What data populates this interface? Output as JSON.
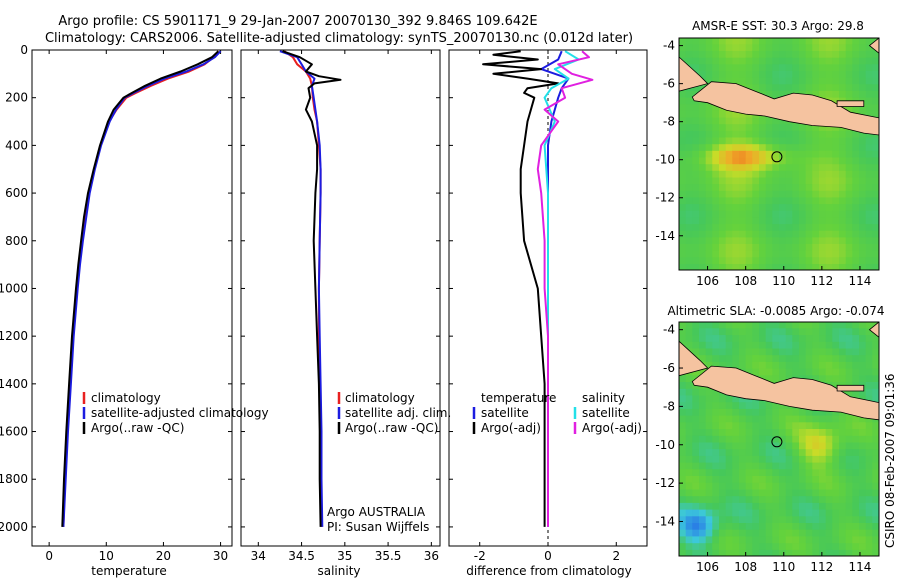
{
  "title_line1": "Argo profile: CS 5901171_9 29-Jan-2007 20070130_392 9.846S 109.642E",
  "title_line2": "Climatology: CARS2006. Satellite-adjusted climatology: synTS_20070130.nc (0.012d later)",
  "side_label": "CSIRO 08-Feb-2007 09:01:36",
  "argo_label_1": "Argo AUSTRALIA",
  "argo_label_2": "PI: Susan Wijffels",
  "colors": {
    "climatology": "#e82020",
    "satellite": "#1c1ce0",
    "argo": "#000000",
    "sal_sat": "#22e0e8",
    "sal_argo": "#e020e0",
    "land": "#f5c3a0"
  },
  "chart_data": [
    {
      "id": "temperature",
      "type": "line",
      "xlabel": "temperature",
      "ylabel": "",
      "xlim": [
        -3,
        32
      ],
      "ylim": [
        2080,
        0
      ],
      "xticks": [
        "0",
        "10",
        "20",
        "30"
      ],
      "yticks": [
        "0",
        "200",
        "400",
        "600",
        "800",
        "1000",
        "1200",
        "1400",
        "1600",
        "1800",
        "2000"
      ],
      "legend": [
        "climatology",
        "satellite-adjusted climatology",
        "Argo(..raw -QC)"
      ],
      "legend_position": "lower-center",
      "series": [
        {
          "name": "climatology",
          "depth": [
            5,
            30,
            60,
            90,
            120,
            150,
            180,
            200,
            250,
            300,
            400,
            500,
            600,
            700,
            800,
            900,
            1000,
            1200,
            1400,
            1600,
            1800,
            2000
          ],
          "values": [
            29.6,
            28.8,
            27.2,
            24.5,
            20.8,
            17.8,
            15.2,
            13.5,
            11.8,
            10.5,
            9.0,
            7.9,
            7.0,
            6.4,
            5.8,
            5.3,
            4.9,
            4.2,
            3.7,
            3.2,
            2.8,
            2.5
          ]
        },
        {
          "name": "satellite-adjusted climatology",
          "depth": [
            5,
            30,
            60,
            90,
            120,
            150,
            180,
            200,
            250,
            300,
            400,
            500,
            600,
            700,
            800,
            900,
            1000,
            1200,
            1400,
            1600,
            1800,
            2000
          ],
          "values": [
            30.0,
            29.0,
            27.0,
            24.0,
            20.2,
            17.3,
            14.8,
            13.2,
            11.7,
            10.6,
            9.1,
            8.0,
            7.1,
            6.5,
            5.9,
            5.4,
            5.0,
            4.3,
            3.8,
            3.3,
            2.9,
            2.5
          ]
        },
        {
          "name": "Argo(..raw -QC)",
          "depth": [
            5,
            30,
            60,
            90,
            120,
            150,
            180,
            200,
            250,
            300,
            400,
            500,
            600,
            700,
            800,
            900,
            1000,
            1200,
            1400,
            1600,
            1800,
            2000
          ],
          "values": [
            29.6,
            28.5,
            26.0,
            23.0,
            19.5,
            16.8,
            14.5,
            13.0,
            11.3,
            10.3,
            8.9,
            7.8,
            6.8,
            6.1,
            5.6,
            5.1,
            4.7,
            4.0,
            3.5,
            3.0,
            2.6,
            2.3
          ]
        }
      ]
    },
    {
      "id": "salinity",
      "type": "line",
      "xlabel": "salinity",
      "xlim": [
        33.8,
        36.1
      ],
      "ylim": [
        2080,
        0
      ],
      "xticks": [
        "34",
        "34.5",
        "35",
        "35.5",
        "36"
      ],
      "legend": [
        "climatology",
        "satellite adj. clim.",
        "Argo(..raw -QC)"
      ],
      "legend_position": "lower-center",
      "series": [
        {
          "name": "climatology",
          "depth": [
            5,
            30,
            60,
            90,
            120,
            150,
            200,
            250,
            300,
            400,
            500,
            600,
            800,
            1000,
            1200,
            1400,
            1600,
            1800,
            2000
          ],
          "values": [
            34.3,
            34.4,
            34.45,
            34.55,
            34.6,
            34.62,
            34.63,
            34.65,
            34.68,
            34.7,
            34.72,
            34.72,
            34.71,
            34.7,
            34.7,
            34.71,
            34.72,
            34.73,
            34.73
          ]
        },
        {
          "name": "satellite adj. clim.",
          "depth": [
            5,
            30,
            60,
            90,
            120,
            150,
            200,
            250,
            300,
            400,
            500,
            600,
            800,
            1000,
            1200,
            1400,
            1600,
            1800,
            2000
          ],
          "values": [
            34.25,
            34.45,
            34.5,
            34.55,
            34.65,
            34.62,
            34.64,
            34.66,
            34.68,
            34.71,
            34.72,
            34.72,
            34.71,
            34.7,
            34.71,
            34.72,
            34.73,
            34.73,
            34.74
          ]
        },
        {
          "name": "Argo(..raw -QC)",
          "depth": [
            5,
            30,
            60,
            90,
            110,
            125,
            140,
            160,
            200,
            250,
            300,
            400,
            500,
            600,
            800,
            1000,
            1200,
            1400,
            1600,
            1800,
            2000
          ],
          "values": [
            34.28,
            34.48,
            34.62,
            34.55,
            34.7,
            34.95,
            34.65,
            34.58,
            34.6,
            34.55,
            34.62,
            34.68,
            34.68,
            34.66,
            34.64,
            34.66,
            34.68,
            34.7,
            34.71,
            34.71,
            34.72
          ]
        }
      ]
    },
    {
      "id": "difference",
      "type": "line",
      "xlabel": "difference from climatology",
      "xlim": [
        -2.9,
        2.9
      ],
      "ylim": [
        2080,
        0
      ],
      "xticks": [
        "-2",
        "0",
        "2"
      ],
      "legend_left": [
        "temperature",
        "satellite",
        "Argo(-adj)"
      ],
      "legend_right": [
        "salinity",
        "satellite",
        "Argo(-adj)"
      ],
      "legend_position": "lower-center",
      "series": [
        {
          "name": "temperature satellite",
          "depth": [
            5,
            40,
            80,
            120,
            160,
            200,
            300,
            400,
            600,
            800,
            1000,
            1200,
            1500,
            1800,
            2000
          ],
          "values": [
            0.4,
            0.3,
            -0.2,
            0.6,
            0.4,
            0.3,
            0.1,
            0.0,
            0.0,
            0.0,
            0.0,
            0.0,
            0.0,
            0.0,
            0.0
          ]
        },
        {
          "name": "temperature Argo(-adj)",
          "depth": [
            5,
            20,
            40,
            60,
            80,
            100,
            120,
            140,
            160,
            180,
            200,
            250,
            300,
            400,
            500,
            600,
            800,
            1000,
            1200,
            1400,
            1600,
            1800,
            2000
          ],
          "values": [
            -0.8,
            -1.6,
            -0.3,
            -1.9,
            -0.2,
            -1.6,
            -0.6,
            0.3,
            -0.6,
            -0.7,
            -0.4,
            -0.5,
            -0.6,
            -0.7,
            -0.8,
            -0.8,
            -0.7,
            -0.3,
            -0.2,
            -0.1,
            -0.1,
            -0.1,
            -0.1
          ]
        },
        {
          "name": "salinity satellite",
          "depth": [
            5,
            40,
            80,
            120,
            160,
            200,
            300,
            400,
            600,
            800,
            1000,
            1200,
            1500,
            1800,
            2000
          ],
          "values": [
            0.5,
            0.9,
            0.2,
            0.6,
            0.1,
            -0.1,
            0.2,
            -0.1,
            0.0,
            0.0,
            0.0,
            0.0,
            0.0,
            0.0,
            0.0
          ]
        },
        {
          "name": "salinity Argo(-adj)",
          "depth": [
            5,
            30,
            60,
            100,
            125,
            160,
            200,
            250,
            300,
            400,
            500,
            600,
            800,
            1000,
            1200,
            1400,
            1600,
            1800,
            2000
          ],
          "values": [
            1.0,
            1.2,
            0.3,
            0.7,
            1.3,
            0.4,
            0.5,
            -0.1,
            0.3,
            -0.2,
            -0.3,
            -0.2,
            -0.1,
            -0.1,
            0.0,
            0.0,
            0.0,
            0.0,
            0.0
          ]
        }
      ]
    },
    {
      "id": "sst_map",
      "type": "heatmap",
      "title": "AMSR-E SST: 30.3  Argo: 29.8",
      "xticks": [
        "106",
        "108",
        "110",
        "112",
        "114"
      ],
      "yticks": [
        "-4",
        "-6",
        "-8",
        "-10",
        "-12",
        "-14"
      ],
      "xlim": [
        104.5,
        115
      ],
      "ylim": [
        -15.8,
        -3.6
      ],
      "marker": {
        "lon": 109.642,
        "lat": -9.846
      }
    },
    {
      "id": "sla_map",
      "type": "heatmap",
      "title": "Altimetric SLA: -0.0085  Argo: -0.074",
      "xticks": [
        "106",
        "108",
        "110",
        "112",
        "114"
      ],
      "yticks": [
        "-4",
        "-6",
        "-8",
        "-10",
        "-12",
        "-14"
      ],
      "xlim": [
        104.5,
        115
      ],
      "ylim": [
        -15.8,
        -3.6
      ],
      "marker": {
        "lon": 109.642,
        "lat": -9.846
      }
    }
  ]
}
